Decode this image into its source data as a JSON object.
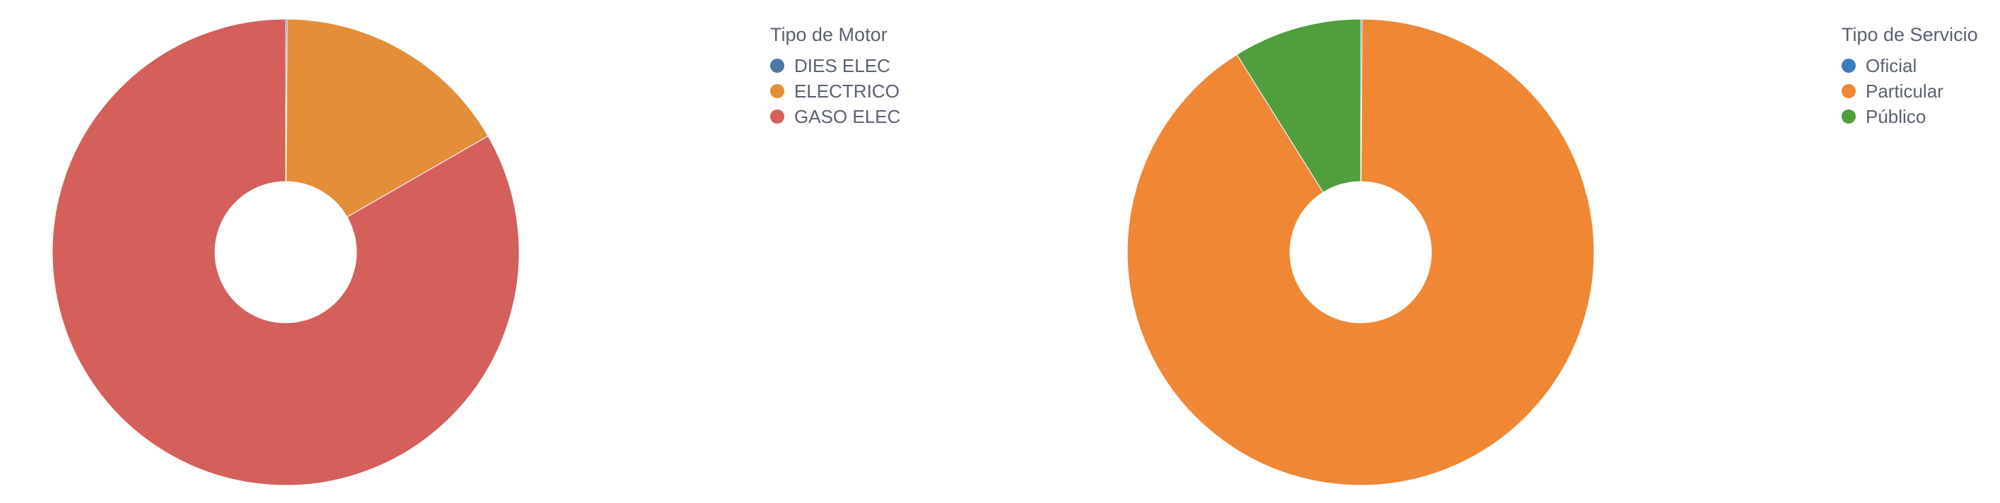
{
  "chart_data": [
    {
      "type": "pie",
      "donut": true,
      "legend": {
        "title": "Tipo de Motor",
        "placement": "right"
      },
      "categories": [
        "DIES ELEC",
        "ELECTRICO",
        "GASO ELEC"
      ],
      "values": [
        0.1,
        16.6,
        83.3
      ],
      "colors": [
        "#4c78a8",
        "#e58e3a",
        "#d45f5b"
      ]
    },
    {
      "type": "pie",
      "donut": true,
      "legend": {
        "title": "Tipo de Servicio",
        "placement": "right"
      },
      "categories": [
        "Oficial",
        "Particular",
        "Público"
      ],
      "values": [
        0.1,
        91.0,
        8.9
      ],
      "colors": [
        "#3b7bbf",
        "#ef8735",
        "#519e3e"
      ]
    }
  ]
}
